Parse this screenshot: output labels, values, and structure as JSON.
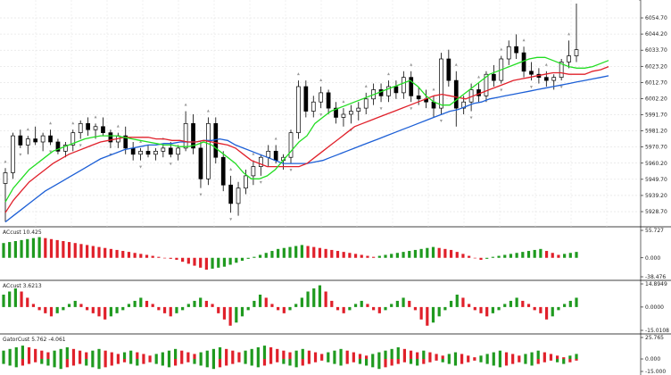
{
  "chart_data": [
    {
      "type": "candlestick",
      "name": "main-price-pane",
      "ylim": [
        5920,
        6064
      ],
      "y_ticks": [
        "6054.70",
        "6044.20",
        "6033.70",
        "6023.20",
        "6012.70",
        "6002.20",
        "5991.70",
        "5981.20",
        "5970.70",
        "5960.20",
        "5949.70",
        "5939.20",
        "5928.70"
      ],
      "y_tick_values": [
        6054.7,
        6044.2,
        6033.7,
        6023.2,
        6012.7,
        6002.2,
        5991.7,
        5981.2,
        5970.7,
        5960.2,
        5949.7,
        5939.2,
        5928.7
      ],
      "grid": true,
      "candles": [
        [
          5947,
          5957,
          5922,
          5954
        ],
        [
          5954,
          5980,
          5950,
          5978
        ],
        [
          5978,
          5982,
          5970,
          5972
        ],
        [
          5972,
          5978,
          5966,
          5976
        ],
        [
          5976,
          5984,
          5972,
          5974
        ],
        [
          5974,
          5980,
          5968,
          5978
        ],
        [
          5978,
          5982,
          5972,
          5974
        ],
        [
          5974,
          5976,
          5966,
          5968
        ],
        [
          5968,
          5974,
          5964,
          5972
        ],
        [
          5972,
          5982,
          5968,
          5980
        ],
        [
          5980,
          5988,
          5976,
          5986
        ],
        [
          5986,
          5990,
          5978,
          5982
        ],
        [
          5982,
          5986,
          5976,
          5984
        ],
        [
          5984,
          5990,
          5978,
          5980
        ],
        [
          5980,
          5982,
          5970,
          5974
        ],
        [
          5974,
          5980,
          5970,
          5978
        ],
        [
          5978,
          5984,
          5966,
          5970
        ],
        [
          5970,
          5974,
          5962,
          5966
        ],
        [
          5966,
          5970,
          5962,
          5968
        ],
        [
          5968,
          5972,
          5964,
          5966
        ],
        [
          5966,
          5970,
          5962,
          5968
        ],
        [
          5968,
          5972,
          5964,
          5970
        ],
        [
          5970,
          5974,
          5964,
          5966
        ],
        [
          5966,
          5972,
          5962,
          5970
        ],
        [
          5970,
          5994,
          5968,
          5986
        ],
        [
          5986,
          5992,
          5966,
          5970
        ],
        [
          5970,
          5974,
          5944,
          5950
        ],
        [
          5950,
          5990,
          5946,
          5986
        ],
        [
          5986,
          5990,
          5960,
          5964
        ],
        [
          5964,
          5968,
          5942,
          5946
        ],
        [
          5946,
          5952,
          5928,
          5934
        ],
        [
          5934,
          5948,
          5926,
          5944
        ],
        [
          5944,
          5956,
          5940,
          5952
        ],
        [
          5952,
          5962,
          5946,
          5958
        ],
        [
          5958,
          5966,
          5952,
          5964
        ],
        [
          5964,
          5972,
          5958,
          5968
        ],
        [
          5968,
          5972,
          5960,
          5962
        ],
        [
          5962,
          5966,
          5956,
          5964
        ],
        [
          5964,
          5982,
          5960,
          5980
        ],
        [
          5980,
          6014,
          5976,
          6010
        ],
        [
          6010,
          6014,
          5990,
          5994
        ],
        [
          5994,
          6004,
          5990,
          6000
        ],
        [
          6000,
          6010,
          5996,
          6006
        ],
        [
          6006,
          6008,
          5992,
          5996
        ],
        [
          5996,
          6000,
          5986,
          5990
        ],
        [
          5990,
          5996,
          5984,
          5992
        ],
        [
          5992,
          5998,
          5986,
          5994
        ],
        [
          5994,
          6000,
          5988,
          5996
        ],
        [
          5996,
          6006,
          5992,
          6002
        ],
        [
          6002,
          6012,
          5998,
          6008
        ],
        [
          6008,
          6012,
          6000,
          6004
        ],
        [
          6004,
          6014,
          6000,
          6010
        ],
        [
          6010,
          6014,
          6002,
          6006
        ],
        [
          6006,
          6020,
          6002,
          6016
        ],
        [
          6016,
          6020,
          6000,
          6004
        ],
        [
          6004,
          6010,
          5998,
          6002
        ],
        [
          6002,
          6008,
          5996,
          6000
        ],
        [
          6000,
          6004,
          5990,
          5996
        ],
        [
          5996,
          6032,
          5992,
          6028
        ],
        [
          6028,
          6034,
          6010,
          6014
        ],
        [
          6014,
          6020,
          5984,
          5996
        ],
        [
          5996,
          6004,
          5992,
          6000
        ],
        [
          6000,
          6012,
          5994,
          6008
        ],
        [
          6008,
          6012,
          6000,
          6004
        ],
        [
          6004,
          6020,
          6000,
          6018
        ],
        [
          6018,
          6024,
          6010,
          6014
        ],
        [
          6014,
          6030,
          6012,
          6028
        ],
        [
          6028,
          6040,
          6024,
          6036
        ],
        [
          6036,
          6044,
          6028,
          6032
        ],
        [
          6032,
          6036,
          6016,
          6020
        ],
        [
          6020,
          6026,
          6014,
          6018
        ],
        [
          6018,
          6022,
          6012,
          6016
        ],
        [
          6016,
          6020,
          6010,
          6014
        ],
        [
          6014,
          6018,
          6008,
          6016
        ],
        [
          6016,
          6028,
          6014,
          6026
        ],
        [
          6026,
          6040,
          6022,
          6030
        ],
        [
          6030,
          6064,
          6026,
          6034
        ]
      ],
      "indicators": [
        {
          "color": "#1c5fd6",
          "values": [
            5922,
            5926,
            5930,
            5934,
            5938,
            5942,
            5945,
            5948,
            5951,
            5954,
            5957,
            5960,
            5963,
            5965,
            5967,
            5969,
            5970,
            5971,
            5972,
            5972,
            5973,
            5973,
            5974,
            5974,
            5974,
            5975,
            5975,
            5976,
            5975,
            5972,
            5970,
            5968,
            5966,
            5964,
            5962,
            5960,
            5960,
            5960,
            5960,
            5961,
            5962,
            5964,
            5966,
            5968,
            5970,
            5972,
            5974,
            5976,
            5978,
            5980,
            5982,
            5984,
            5986,
            5988,
            5990,
            5992,
            5994,
            5995,
            5997,
            5999,
            6000,
            6002,
            6003,
            6004,
            6005,
            6006,
            6007,
            6008,
            6009,
            6010,
            6011,
            6012,
            6013,
            6014,
            6015,
            6016,
            6017
          ]
        },
        {
          "color": "#e0202a",
          "values": [
            5928,
            5936,
            5942,
            5948,
            5952,
            5956,
            5960,
            5963,
            5966,
            5968,
            5970,
            5972,
            5974,
            5975,
            5976,
            5977,
            5977,
            5977,
            5977,
            5976,
            5976,
            5975,
            5975,
            5974,
            5974,
            5975,
            5974,
            5973,
            5972,
            5970,
            5966,
            5962,
            5960,
            5958,
            5958,
            5958,
            5958,
            5958,
            5960,
            5964,
            5968,
            5972,
            5976,
            5980,
            5984,
            5986,
            5988,
            5990,
            5992,
            5994,
            5996,
            5998,
            6000,
            6002,
            6004,
            6005,
            6004,
            6003,
            6002,
            6004,
            6006,
            6008,
            6010,
            6012,
            6014,
            6015,
            6016,
            6017,
            6018,
            6019,
            6019,
            6018,
            6018,
            6018,
            6020,
            6021,
            6023
          ]
        },
        {
          "color": "#22dd22",
          "values": [
            5935,
            5944,
            5950,
            5956,
            5960,
            5964,
            5968,
            5970,
            5972,
            5974,
            5976,
            5977,
            5978,
            5978,
            5978,
            5977,
            5976,
            5975,
            5974,
            5973,
            5972,
            5972,
            5971,
            5971,
            5972,
            5974,
            5972,
            5968,
            5964,
            5960,
            5954,
            5950,
            5950,
            5952,
            5956,
            5962,
            5968,
            5974,
            5978,
            5986,
            5990,
            5994,
            5996,
            5998,
            6000,
            6002,
            6004,
            6006,
            6008,
            6010,
            6012,
            6014,
            6010,
            6004,
            6000,
            5998,
            5998,
            6002,
            6006,
            6010,
            6014,
            6018,
            6020,
            6022,
            6024,
            6026,
            6028,
            6029,
            6029,
            6027,
            6025,
            6023,
            6022,
            6022,
            6023,
            6025,
            6027
          ]
        }
      ]
    },
    {
      "type": "histogram",
      "name": "ac-pane-1",
      "label": "ACcust 10.425",
      "ylim": [
        -38.476,
        55.727
      ],
      "y_ticks": [
        "55.727",
        "0.000",
        "-38.476"
      ],
      "y_tick_values": [
        55.727,
        0,
        -38.476
      ],
      "values": [
        30,
        32,
        34,
        36,
        38,
        40,
        42,
        40,
        38,
        36,
        34,
        32,
        30,
        28,
        26,
        24,
        22,
        20,
        18,
        16,
        14,
        12,
        10,
        8,
        6,
        4,
        2,
        0,
        -2,
        -4,
        -8,
        -12,
        -16,
        -20,
        -24,
        -22,
        -20,
        -18,
        -14,
        -10,
        -6,
        -2,
        2,
        6,
        10,
        14,
        18,
        20,
        22,
        24,
        26,
        24,
        22,
        20,
        18,
        16,
        14,
        12,
        10,
        8,
        6,
        4,
        2,
        4,
        6,
        8,
        10,
        12,
        14,
        16,
        18,
        20,
        22,
        20,
        18,
        16,
        12,
        8,
        4,
        0,
        -4,
        -2,
        2,
        4,
        6,
        8,
        10,
        12,
        14,
        16,
        18,
        14,
        10,
        6,
        8,
        10,
        12
      ]
    },
    {
      "type": "histogram",
      "name": "ac-pane-2",
      "label": "ACcust 3.6213",
      "ylim": [
        -15.0108,
        14.8949
      ],
      "y_ticks": [
        "14.8949",
        "0.0000",
        "-15.0108"
      ],
      "y_tick_values": [
        14.8949,
        0,
        -15.0108
      ],
      "values": [
        8,
        10,
        12,
        10,
        6,
        2,
        -2,
        -4,
        -6,
        -4,
        -2,
        2,
        4,
        2,
        -2,
        -4,
        -6,
        -8,
        -6,
        -4,
        -2,
        2,
        4,
        6,
        4,
        2,
        -2,
        -4,
        -6,
        -4,
        -2,
        2,
        4,
        6,
        4,
        2,
        -4,
        -8,
        -12,
        -10,
        -6,
        -2,
        4,
        8,
        6,
        2,
        -2,
        -4,
        -2,
        2,
        6,
        10,
        12,
        14,
        10,
        4,
        -2,
        -4,
        -2,
        2,
        4,
        2,
        -2,
        -4,
        -2,
        2,
        4,
        6,
        4,
        -2,
        -8,
        -12,
        -10,
        -6,
        -2,
        4,
        8,
        6,
        2,
        -2,
        -4,
        -6,
        -4,
        -2,
        2,
        4,
        6,
        4,
        2,
        -2,
        -4,
        -8,
        -6,
        -2,
        2,
        4,
        6
      ]
    },
    {
      "type": "histogram",
      "name": "gator-pane",
      "label": "GatorCust 5.762 -4.061",
      "ylim": [
        -15.0,
        25.765
      ],
      "y_ticks": [
        "25.765",
        "0.000",
        "-15.000"
      ],
      "y_tick_values": [
        25.765,
        0,
        -15.0
      ],
      "values": [
        10,
        12,
        14,
        16,
        14,
        12,
        10,
        8,
        10,
        12,
        14,
        12,
        10,
        8,
        10,
        12,
        10,
        8,
        6,
        8,
        10,
        8,
        6,
        4,
        6,
        8,
        10,
        12,
        10,
        8,
        6,
        8,
        10,
        12,
        14,
        12,
        10,
        8,
        10,
        12,
        14,
        16,
        14,
        12,
        10,
        8,
        10,
        12,
        10,
        8,
        6,
        8,
        10,
        12,
        10,
        8,
        6,
        4,
        6,
        8,
        10,
        12,
        14,
        12,
        10,
        8,
        10,
        8,
        6,
        4,
        6,
        8,
        6,
        4,
        2,
        4,
        6,
        8,
        10,
        8,
        6,
        4,
        6,
        8,
        10,
        8,
        6,
        4,
        2,
        4,
        6
      ],
      "down_values": [
        -6,
        -8,
        -10,
        -8,
        -6,
        -4,
        -6,
        -8,
        -10,
        -12,
        -10,
        -8,
        -6,
        -8,
        -10,
        -12,
        -10,
        -8,
        -6,
        -4,
        -6,
        -8,
        -6,
        -4,
        -6,
        -8,
        -10,
        -8,
        -6,
        -4,
        -6,
        -8,
        -10,
        -12,
        -10,
        -8,
        -6,
        -4,
        -6,
        -8,
        -10,
        -8,
        -6,
        -4,
        -6,
        -8,
        -10,
        -8,
        -6,
        -4,
        -2,
        -4,
        -6,
        -8,
        -6,
        -4,
        -6,
        -8,
        -10,
        -12,
        -10,
        -8,
        -6,
        -4,
        -6,
        -8,
        -6,
        -4,
        -2,
        -4,
        -6,
        -8,
        -6,
        -4,
        -2,
        -4,
        -6,
        -8,
        -10,
        -8,
        -6,
        -4,
        -6,
        -8,
        -6,
        -4,
        -2,
        -4,
        -6,
        -4,
        -2
      ]
    }
  ]
}
